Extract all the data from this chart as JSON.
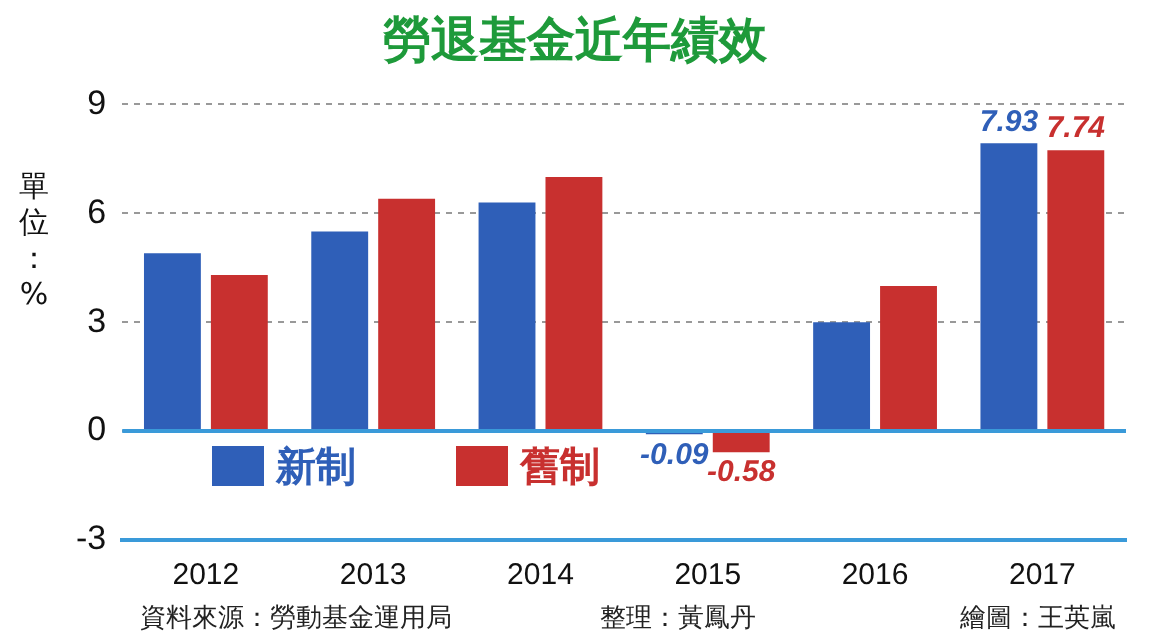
{
  "chart_data": {
    "type": "bar",
    "title": "勞退基金近年績效",
    "ylabel": "單位：%",
    "categories": [
      "2012",
      "2013",
      "2014",
      "2015",
      "2016",
      "2017"
    ],
    "series": [
      {
        "name": "新制",
        "color": "#2f5fb8",
        "values": [
          4.9,
          5.5,
          6.3,
          -0.09,
          3.0,
          7.93
        ],
        "value_labels": [
          null,
          null,
          null,
          "-0.09",
          null,
          "7.93"
        ]
      },
      {
        "name": "舊制",
        "color": "#c8302f",
        "values": [
          4.3,
          6.4,
          7.0,
          -0.58,
          4.0,
          7.74
        ],
        "value_labels": [
          null,
          null,
          null,
          "-0.58",
          null,
          "7.74"
        ]
      }
    ],
    "ylim": [
      -3,
      9
    ],
    "yticks": [
      -3,
      0,
      3,
      6,
      9
    ],
    "grid": "y",
    "legend": "bottom left",
    "ref_lines": [
      {
        "axis": "y",
        "value": 0,
        "color": "#3a9ad9"
      }
    ],
    "annotations": [
      "資料來源：勞動基金運用局",
      "整理：黃鳳丹",
      "繪圖：王英嵐"
    ]
  }
}
